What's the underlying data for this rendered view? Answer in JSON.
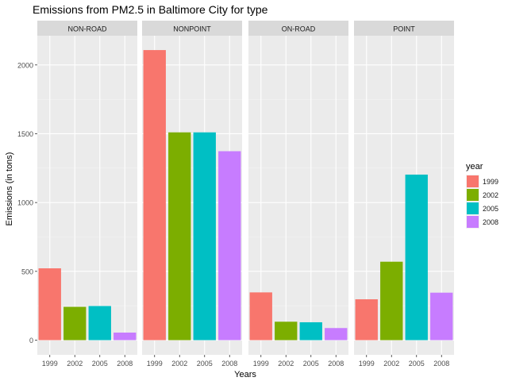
{
  "chart_data": {
    "type": "bar",
    "title": "Emissions from PM2.5 in Baltimore City for type",
    "xlabel": "Years",
    "ylabel": "Emissions (in tons)",
    "categories": [
      "1999",
      "2002",
      "2005",
      "2008"
    ],
    "ylim": [
      0,
      2200
    ],
    "yticks": [
      0,
      500,
      1000,
      1500,
      2000
    ],
    "grid": true,
    "legend": {
      "title": "year",
      "position": "right",
      "entries": [
        {
          "label": "1999",
          "color": "#F8766D"
        },
        {
          "label": "2002",
          "color": "#7CAE00"
        },
        {
          "label": "2005",
          "color": "#00BFC4"
        },
        {
          "label": "2008",
          "color": "#C77CFF"
        }
      ]
    },
    "panels": [
      {
        "name": "NON-ROAD",
        "values": [
          522,
          242,
          248,
          55
        ]
      },
      {
        "name": "NONPOINT",
        "values": [
          2108,
          1510,
          1510,
          1373
        ]
      },
      {
        "name": "ON-ROAD",
        "values": [
          347,
          134,
          130,
          88
        ]
      },
      {
        "name": "POINT",
        "values": [
          297,
          570,
          1203,
          345
        ]
      }
    ]
  }
}
